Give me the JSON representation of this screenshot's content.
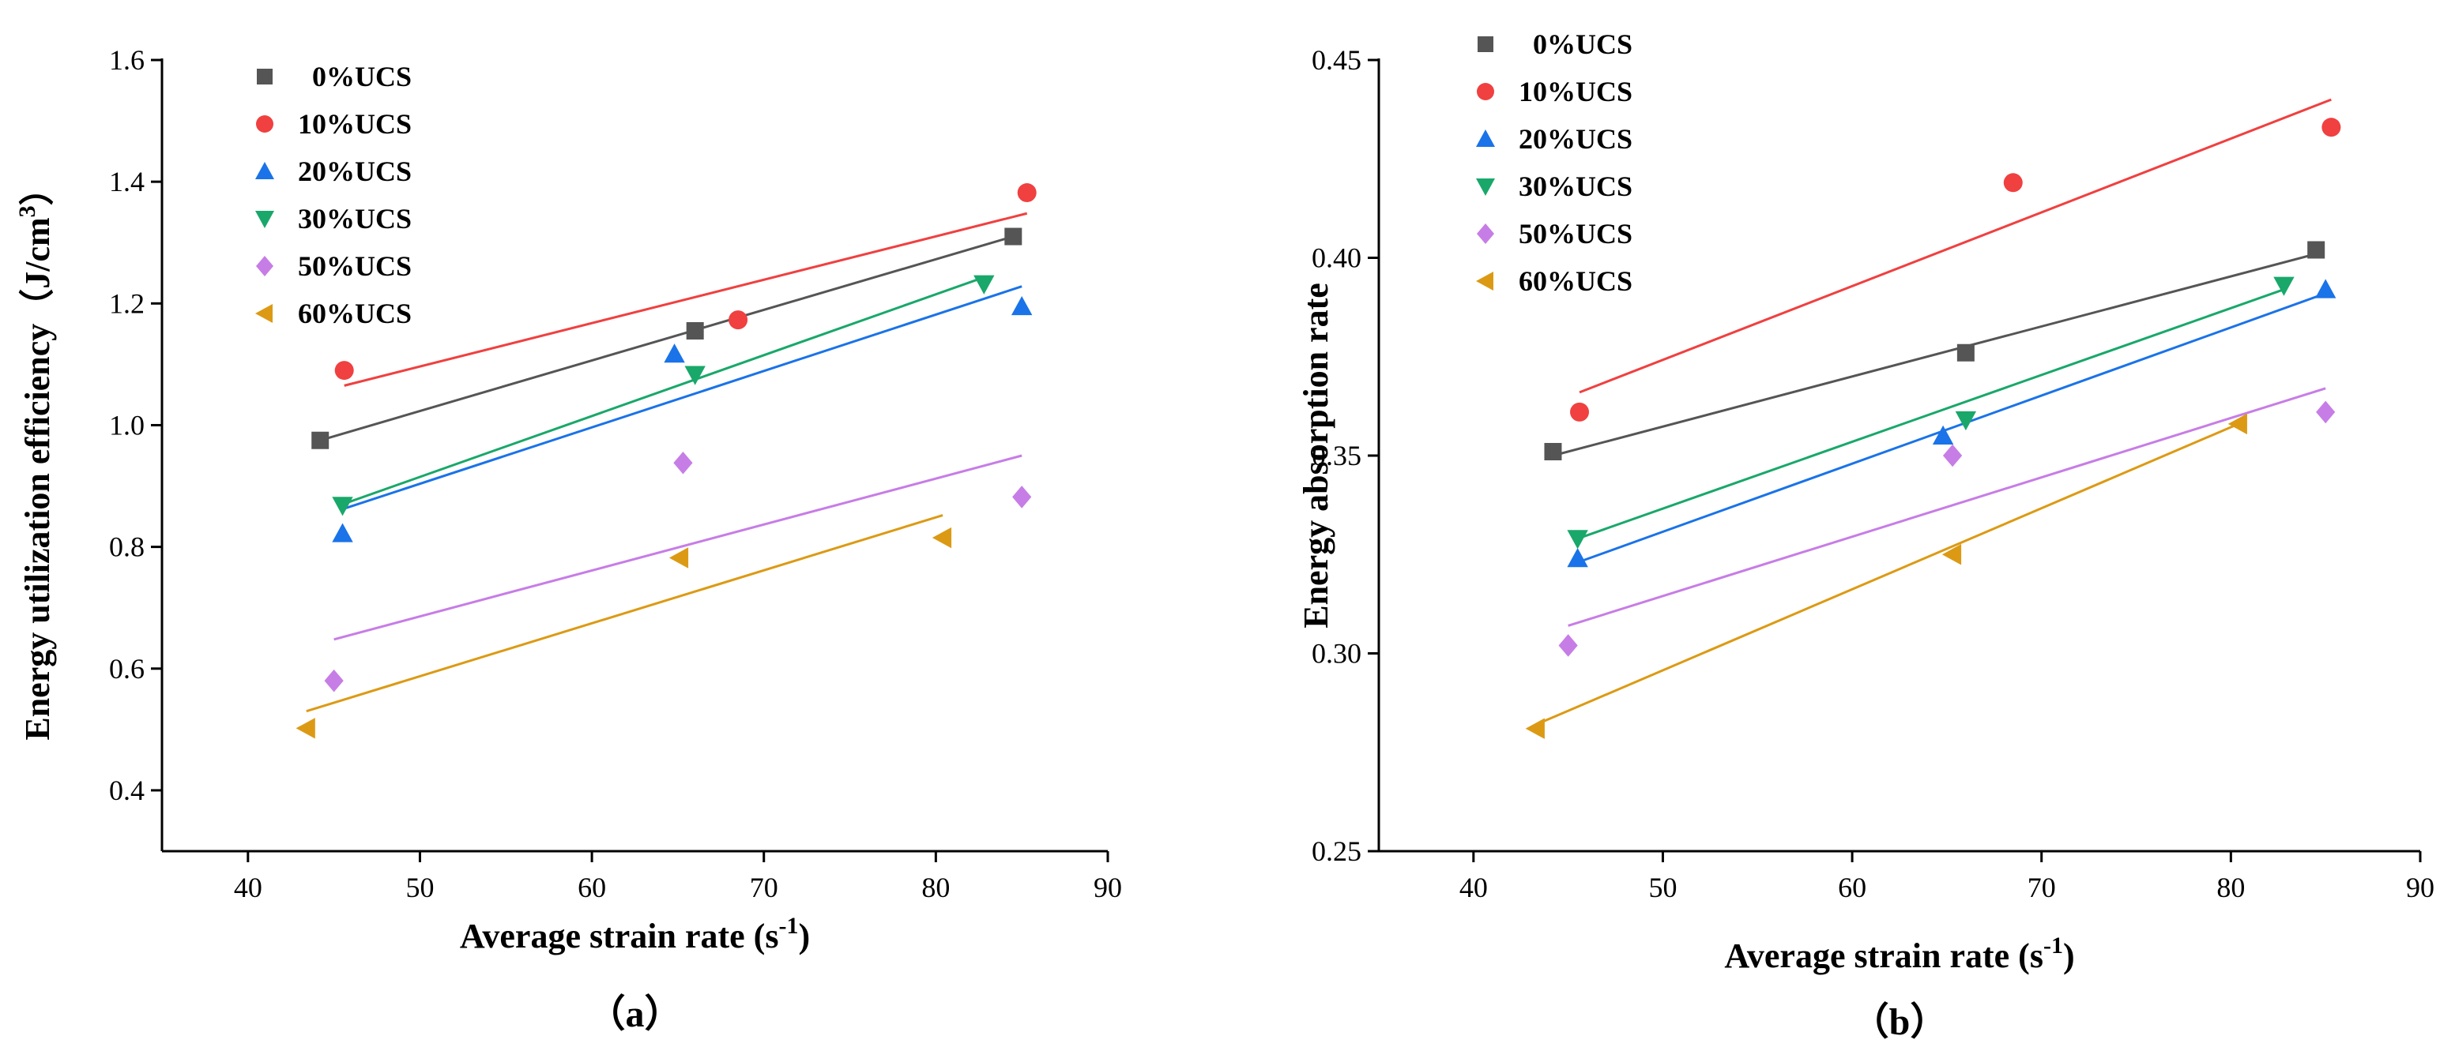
{
  "chart_data": [
    {
      "type": "scatter",
      "caption": "（a）",
      "xlabel": "Average strain rate (s",
      "xlabel_sup": "-1",
      "xlabel_end": ")",
      "ylabel": "Energy utilization efficiency（J/cm",
      "ylabel_sup": "3",
      "ylabel_end": "）",
      "xlim": [
        35,
        90
      ],
      "ylim": [
        0.3,
        1.6
      ],
      "xticks": [
        40,
        50,
        60,
        70,
        80,
        90
      ],
      "yticks": [
        0.4,
        0.6,
        0.8,
        1.0,
        1.2,
        1.4,
        1.6
      ],
      "ytick_labels": [
        "0.4",
        "0.6",
        "0.8",
        "1.0",
        "1.2",
        "1.4",
        "1.6"
      ],
      "legend_position": "top-left",
      "series": [
        {
          "name": "0%UCS",
          "legend_label": "  0%UCS",
          "color": "#555555",
          "marker": "square",
          "points": [
            [
              44.2,
              0.975
            ],
            [
              66.0,
              1.155
            ],
            [
              84.5,
              1.31
            ]
          ],
          "fit": [
            [
              44.2,
              0.975
            ],
            [
              84.5,
              1.31
            ]
          ]
        },
        {
          "name": "10%UCS",
          "legend_label": "10%UCS",
          "color": "#f04040",
          "marker": "circle",
          "points": [
            [
              45.6,
              1.09
            ],
            [
              68.5,
              1.173
            ],
            [
              85.3,
              1.382
            ]
          ],
          "fit": [
            [
              45.6,
              1.065
            ],
            [
              85.3,
              1.348
            ]
          ]
        },
        {
          "name": "20%UCS",
          "legend_label": "20%UCS",
          "color": "#1a73e8",
          "marker": "triangle-up",
          "points": [
            [
              45.5,
              0.822
            ],
            [
              64.8,
              1.117
            ],
            [
              85.0,
              1.195
            ]
          ],
          "fit": [
            [
              45.5,
              0.862
            ],
            [
              85.0,
              1.228
            ]
          ]
        },
        {
          "name": "30%UCS",
          "legend_label": "30%UCS",
          "color": "#19a86a",
          "marker": "triangle-down",
          "points": [
            [
              45.5,
              0.868
            ],
            [
              66.0,
              1.083
            ],
            [
              82.8,
              1.232
            ]
          ],
          "fit": [
            [
              45.5,
              0.87
            ],
            [
              82.8,
              1.243
            ]
          ]
        },
        {
          "name": "50%UCS",
          "legend_label": "50%UCS",
          "color": "#c77de6",
          "marker": "diamond",
          "points": [
            [
              45.0,
              0.58
            ],
            [
              65.3,
              0.938
            ],
            [
              85.0,
              0.882
            ]
          ],
          "fit": [
            [
              45.0,
              0.648
            ],
            [
              85.0,
              0.95
            ]
          ]
        },
        {
          "name": "60%UCS",
          "legend_label": "60%UCS",
          "color": "#dc9a14",
          "marker": "triangle-left",
          "points": [
            [
              43.4,
              0.502
            ],
            [
              65.1,
              0.782
            ],
            [
              80.4,
              0.815
            ]
          ],
          "fit": [
            [
              43.4,
              0.53
            ],
            [
              80.4,
              0.852
            ]
          ]
        }
      ]
    },
    {
      "type": "scatter",
      "caption": "（b）",
      "xlabel": "Average strain rate (s",
      "xlabel_sup": "-1",
      "xlabel_end": ")",
      "ylabel": "Energy absorption rate",
      "xlim": [
        35,
        90
      ],
      "ylim": [
        0.25,
        0.45
      ],
      "xticks": [
        40,
        50,
        60,
        70,
        80,
        90
      ],
      "yticks": [
        0.25,
        0.3,
        0.35,
        0.4,
        0.45
      ],
      "ytick_labels": [
        "0.25",
        "0.30",
        "0.35",
        "0.40",
        "0.45"
      ],
      "legend_position": "top-left",
      "series": [
        {
          "name": "0%UCS",
          "legend_label": "  0%UCS",
          "color": "#555555",
          "marker": "square",
          "points": [
            [
              44.2,
              0.351
            ],
            [
              66.0,
              0.376
            ],
            [
              84.5,
              0.402
            ]
          ],
          "fit": [
            [
              44.2,
              0.35
            ],
            [
              84.5,
              0.401
            ]
          ]
        },
        {
          "name": "10%UCS",
          "legend_label": "10%UCS",
          "color": "#f04040",
          "marker": "circle",
          "points": [
            [
              45.6,
              0.361
            ],
            [
              68.5,
              0.419
            ],
            [
              85.3,
              0.433
            ]
          ],
          "fit": [
            [
              45.6,
              0.366
            ],
            [
              85.3,
              0.44
            ]
          ]
        },
        {
          "name": "20%UCS",
          "legend_label": "20%UCS",
          "color": "#1a73e8",
          "marker": "triangle-up",
          "points": [
            [
              45.5,
              0.324
            ],
            [
              64.8,
              0.355
            ],
            [
              85.0,
              0.392
            ]
          ],
          "fit": [
            [
              45.5,
              0.323
            ],
            [
              85.0,
              0.391
            ]
          ]
        },
        {
          "name": "30%UCS",
          "legend_label": "30%UCS",
          "color": "#19a86a",
          "marker": "triangle-down",
          "points": [
            [
              45.5,
              0.329
            ],
            [
              66.0,
              0.359
            ],
            [
              82.8,
              0.393
            ]
          ],
          "fit": [
            [
              45.5,
              0.329
            ],
            [
              82.8,
              0.392
            ]
          ]
        },
        {
          "name": "50%UCS",
          "legend_label": "50%UCS",
          "color": "#c77de6",
          "marker": "diamond",
          "points": [
            [
              45.0,
              0.302
            ],
            [
              65.3,
              0.35
            ],
            [
              85.0,
              0.361
            ]
          ],
          "fit": [
            [
              45.0,
              0.307
            ],
            [
              85.0,
              0.367
            ]
          ]
        },
        {
          "name": "60%UCS",
          "legend_label": "60%UCS",
          "color": "#dc9a14",
          "marker": "triangle-left",
          "points": [
            [
              43.3,
              0.281
            ],
            [
              65.3,
              0.325
            ],
            [
              80.4,
              0.358
            ]
          ],
          "fit": [
            [
              43.3,
              0.282
            ],
            [
              80.4,
              0.358
            ]
          ]
        }
      ]
    }
  ]
}
